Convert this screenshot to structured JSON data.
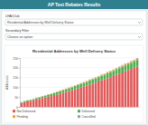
{
  "header": {
    "title": "AP Test Rebates Results"
  },
  "filters": [
    {
      "label": "LHA/Club",
      "value": "Residential Addresses by Well Delivery Status"
    },
    {
      "label": "Secondary Filter",
      "value": "Choose an option"
    }
  ],
  "chart_data": {
    "type": "bar",
    "title": "Residential Addresses by Well Delivery Status",
    "y_label": "Addresses",
    "stacked": true,
    "grid": true,
    "legend": "bottom",
    "tick_labels": "y",
    "categories": [
      null,
      null,
      null,
      null,
      null,
      null,
      null,
      null,
      null,
      null,
      null,
      null,
      null,
      null,
      null,
      null,
      null,
      null,
      null,
      null,
      null,
      null,
      null,
      null,
      null,
      null,
      null,
      null,
      null,
      null,
      null,
      null,
      null,
      null,
      null,
      null,
      null,
      null,
      null,
      null
    ],
    "ylim": [
      0,
      250
    ],
    "yticks": [
      0,
      50,
      100,
      150,
      200,
      250
    ],
    "series": [
      {
        "name": "Not Delivered",
        "color": "#e05a5a",
        "values": [
          20,
          25,
          28,
          30,
          34,
          38,
          40,
          45,
          48,
          52,
          55,
          60,
          63,
          68,
          72,
          76,
          80,
          85,
          90,
          94,
          98,
          104,
          108,
          114,
          118,
          124,
          130,
          136,
          140,
          146,
          152,
          158,
          164,
          170,
          176,
          182,
          188,
          194,
          200,
          206
        ]
      },
      {
        "name": "Delivered",
        "color": "#4caf50",
        "values": [
          4,
          5,
          5,
          6,
          6,
          7,
          8,
          8,
          9,
          10,
          10,
          11,
          12,
          12,
          13,
          14,
          15,
          15,
          16,
          17,
          18,
          18,
          19,
          20,
          21,
          22,
          22,
          23,
          24,
          25,
          26,
          26,
          27,
          28,
          29,
          30,
          30,
          31,
          32,
          34
        ]
      },
      {
        "name": "Pending",
        "color": "#f0a030",
        "values": [
          0,
          0,
          1,
          1,
          1,
          1,
          1,
          2,
          2,
          2,
          2,
          2,
          2,
          3,
          3,
          3,
          3,
          3,
          3,
          3,
          4,
          4,
          4,
          4,
          4,
          4,
          4,
          5,
          5,
          5,
          5,
          5,
          5,
          5,
          6,
          6,
          6,
          6,
          6,
          6
        ]
      },
      {
        "name": "Cancelled",
        "color": "#9e9e9e",
        "values": [
          0,
          0,
          0,
          0,
          0,
          1,
          1,
          1,
          1,
          1,
          1,
          1,
          1,
          1,
          1,
          1,
          1,
          1,
          1,
          2,
          2,
          2,
          2,
          2,
          2,
          2,
          2,
          2,
          2,
          2,
          2,
          2,
          3,
          3,
          3,
          3,
          3,
          3,
          3,
          3
        ]
      }
    ]
  }
}
